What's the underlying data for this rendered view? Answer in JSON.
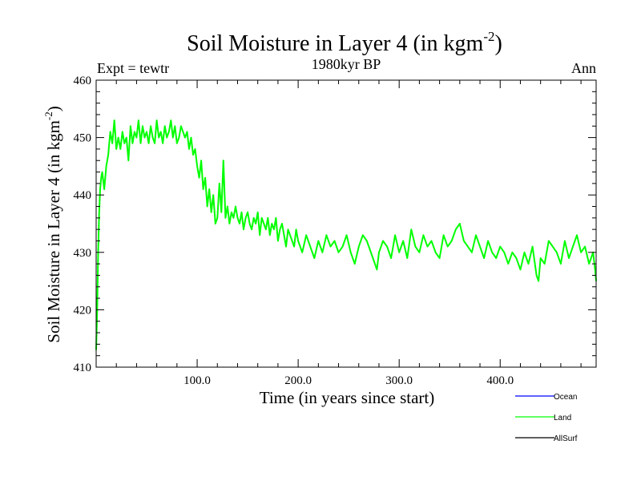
{
  "chart_data": {
    "type": "line",
    "title": "Soil Moisture in Layer 4 (in kgm",
    "title_sup": "-2",
    "title_close": ")",
    "subtitle_center": "1980kyr BP",
    "subtitle_left": "Expt = tewtr",
    "subtitle_right": "Ann",
    "xlabel": "Time (in years since start)",
    "ylabel": "Soil Moisture in Layer 4 (in kgm",
    "ylabel_sup": "-2",
    "ylabel_close": ")",
    "xlim": [
      0,
      495
    ],
    "ylim": [
      410,
      460
    ],
    "x_tick_values": [
      100,
      200,
      300,
      400
    ],
    "x_tick_labels": [
      "100.0",
      "200.0",
      "300.0",
      "400.0"
    ],
    "y_tick_values": [
      410,
      420,
      430,
      440,
      450,
      460
    ],
    "y_tick_labels": [
      "410",
      "420",
      "430",
      "440",
      "450",
      "460"
    ],
    "legend": [
      {
        "label": "Ocean",
        "color": "#0000ff"
      },
      {
        "label": "Land",
        "color": "#00ff00"
      },
      {
        "label": "AllSurf",
        "color": "#000000"
      }
    ],
    "series": [
      {
        "name": "Land",
        "color": "#00ff00",
        "x": [
          0,
          1,
          2,
          3,
          4,
          5,
          6,
          8,
          10,
          12,
          14,
          16,
          18,
          20,
          22,
          24,
          26,
          28,
          30,
          32,
          34,
          36,
          38,
          40,
          42,
          44,
          46,
          48,
          50,
          52,
          54,
          56,
          58,
          60,
          62,
          64,
          66,
          68,
          70,
          72,
          74,
          76,
          78,
          80,
          82,
          84,
          86,
          88,
          90,
          92,
          94,
          96,
          98,
          100,
          102,
          104,
          106,
          108,
          110,
          112,
          114,
          116,
          118,
          120,
          122,
          124,
          126,
          128,
          130,
          132,
          134,
          136,
          138,
          140,
          142,
          144,
          146,
          148,
          150,
          152,
          154,
          156,
          158,
          160,
          162,
          164,
          166,
          168,
          170,
          172,
          174,
          176,
          178,
          180,
          182,
          184,
          186,
          188,
          190,
          192,
          194,
          196,
          198,
          200,
          204,
          208,
          212,
          216,
          220,
          224,
          228,
          232,
          236,
          240,
          244,
          248,
          252,
          256,
          260,
          264,
          268,
          272,
          276,
          278,
          280,
          284,
          288,
          292,
          296,
          300,
          304,
          308,
          312,
          316,
          320,
          324,
          328,
          332,
          336,
          340,
          344,
          348,
          352,
          356,
          360,
          364,
          368,
          372,
          376,
          380,
          384,
          388,
          392,
          396,
          400,
          404,
          408,
          412,
          416,
          420,
          424,
          428,
          432,
          436,
          438,
          440,
          444,
          448,
          452,
          456,
          460,
          464,
          468,
          472,
          476,
          480,
          484,
          488,
          492,
          494,
          495
        ],
        "values": [
          413,
          420,
          430,
          437,
          441,
          443,
          444,
          441,
          445,
          447,
          451,
          449,
          453,
          448,
          450,
          448,
          451,
          449,
          450,
          446,
          452,
          449,
          451,
          450,
          453,
          449,
          452,
          450,
          451,
          449,
          452,
          450,
          449,
          453,
          450,
          451,
          449,
          452,
          450,
          451,
          453,
          450,
          452,
          449,
          450,
          452,
          451,
          450,
          451,
          448,
          450,
          447,
          448,
          445,
          443,
          446,
          441,
          443,
          438,
          441,
          437,
          440,
          435,
          436,
          442,
          437,
          446,
          436,
          438,
          435,
          437,
          436,
          438,
          436,
          435,
          437,
          434,
          436,
          437,
          435,
          434,
          436,
          435,
          437,
          433,
          436,
          435,
          434,
          436,
          433,
          435,
          434,
          436,
          432,
          434,
          435,
          433,
          431,
          434,
          433,
          432,
          431,
          434,
          432,
          430,
          433,
          431,
          429,
          432,
          430,
          433,
          431,
          432,
          430,
          431,
          433,
          430,
          428,
          431,
          433,
          432,
          430,
          428,
          427,
          430,
          432,
          431,
          429,
          433,
          430,
          432,
          429,
          434,
          431,
          430,
          433,
          431,
          432,
          430,
          429,
          433,
          431,
          432,
          434,
          435,
          432,
          431,
          430,
          433,
          431,
          429,
          432,
          430,
          429,
          431,
          430,
          428,
          430,
          429,
          427,
          430,
          428,
          431,
          426,
          425,
          429,
          428,
          432,
          431,
          430,
          428,
          432,
          429,
          431,
          433,
          430,
          431,
          428,
          430,
          427,
          425
        ]
      }
    ]
  }
}
